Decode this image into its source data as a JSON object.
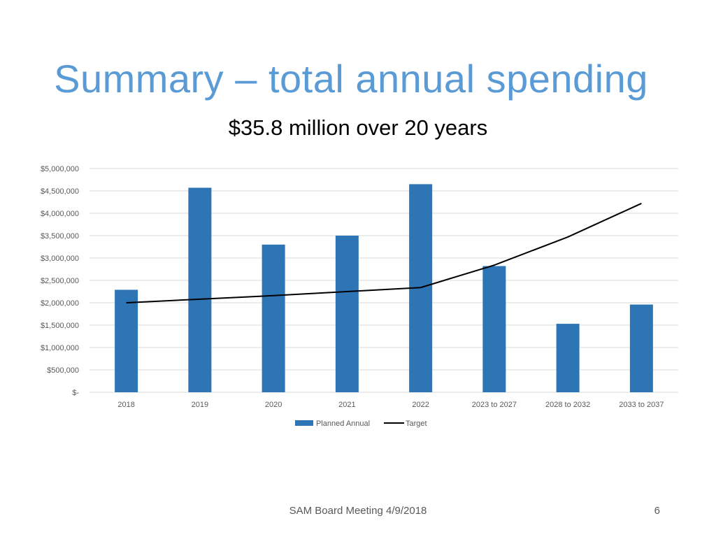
{
  "slide": {
    "title": "Summary – total annual spending",
    "subtitle": "$35.8 million over 20 years",
    "footer": "SAM Board Meeting 4/9/2018",
    "page_number": "6"
  },
  "colors": {
    "title": "#5b9bd5",
    "bar": "#2e75b6",
    "line": "#000000",
    "grid": "#d9d9d9",
    "axis_text": "#595959"
  },
  "chart_data": {
    "type": "bar",
    "title": "",
    "xlabel": "",
    "ylabel": "",
    "categories": [
      "2018",
      "2019",
      "2020",
      "2021",
      "2022",
      "2023 to 2027",
      "2028 to 2032",
      "2033 to 2037"
    ],
    "series": [
      {
        "name": "Planned Annual",
        "type": "bar",
        "values": [
          2290000,
          4570000,
          3300000,
          3500000,
          4650000,
          2820000,
          1530000,
          1960000
        ]
      },
      {
        "name": "Target",
        "type": "line",
        "values": [
          2000000,
          2080000,
          2160000,
          2250000,
          2340000,
          2840000,
          3470000,
          4220000
        ]
      }
    ],
    "ylim": [
      0,
      5000000
    ],
    "yticks": [
      0,
      500000,
      1000000,
      1500000,
      2000000,
      2500000,
      3000000,
      3500000,
      4000000,
      4500000,
      5000000
    ],
    "ytick_labels": [
      "$-",
      "$500,000",
      "$1,000,000",
      "$1,500,000",
      "$2,000,000",
      "$2,500,000",
      "$3,000,000",
      "$3,500,000",
      "$4,000,000",
      "$4,500,000",
      "$5,000,000"
    ],
    "grid": true,
    "legend": "bottom-center"
  }
}
